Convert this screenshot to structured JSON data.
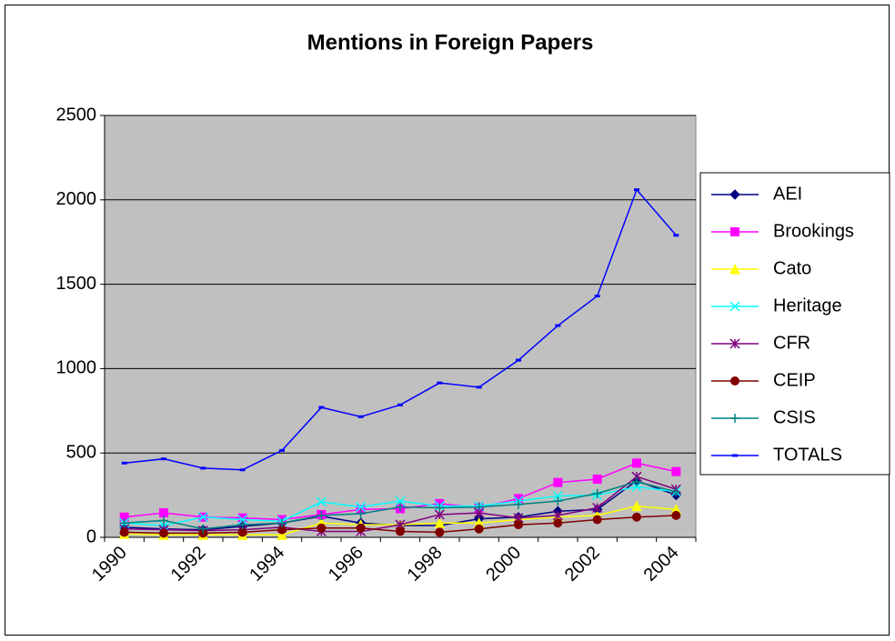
{
  "chart_data": {
    "type": "line",
    "title": "Mentions in Foreign Papers",
    "categories": [
      "1990",
      null,
      "1992",
      null,
      "1994",
      null,
      "1996",
      null,
      "1998",
      null,
      "2000",
      null,
      "2002",
      null,
      "2004"
    ],
    "ylim": [
      0,
      2500
    ],
    "yticks": [
      0,
      500,
      1000,
      1500,
      2000,
      2500
    ],
    "grid": true,
    "legend": "right",
    "series": [
      {
        "name": "AEI",
        "color": "#000080",
        "marker": "diamond",
        "values": [
          60,
          50,
          45,
          65,
          85,
          125,
          85,
          70,
          70,
          110,
          120,
          155,
          165,
          335,
          250
        ]
      },
      {
        "name": "Brookings",
        "color": "#ff00ff",
        "marker": "square",
        "values": [
          120,
          145,
          120,
          115,
          105,
          135,
          165,
          170,
          200,
          175,
          230,
          325,
          345,
          440,
          390
        ]
      },
      {
        "name": "Cato",
        "color": "#ffff00",
        "marker": "triangle",
        "values": [
          20,
          15,
          15,
          15,
          15,
          85,
          75,
          75,
          85,
          85,
          105,
          120,
          130,
          185,
          165
        ]
      },
      {
        "name": "Heritage",
        "color": "#00ffff",
        "marker": "x",
        "values": [
          85,
          70,
          120,
          105,
          95,
          210,
          180,
          215,
          185,
          185,
          215,
          245,
          250,
          300,
          270
        ]
      },
      {
        "name": "CFR",
        "color": "#800080",
        "marker": "star",
        "values": [
          50,
          45,
          40,
          45,
          60,
          35,
          35,
          75,
          135,
          145,
          115,
          130,
          175,
          360,
          285
        ]
      },
      {
        "name": "CEIP",
        "color": "#800000",
        "marker": "circle",
        "values": [
          30,
          25,
          25,
          30,
          45,
          55,
          55,
          35,
          30,
          50,
          75,
          85,
          105,
          120,
          130
        ]
      },
      {
        "name": "CSIS",
        "color": "#008080",
        "marker": "plus",
        "values": [
          85,
          100,
          50,
          75,
          85,
          130,
          140,
          180,
          175,
          180,
          195,
          215,
          260,
          330,
          270
        ]
      },
      {
        "name": "TOTALS",
        "color": "#0000ff",
        "marker": "dash",
        "values": [
          440,
          465,
          410,
          400,
          515,
          770,
          715,
          785,
          915,
          890,
          1050,
          1255,
          1430,
          2060,
          1790
        ]
      }
    ]
  }
}
